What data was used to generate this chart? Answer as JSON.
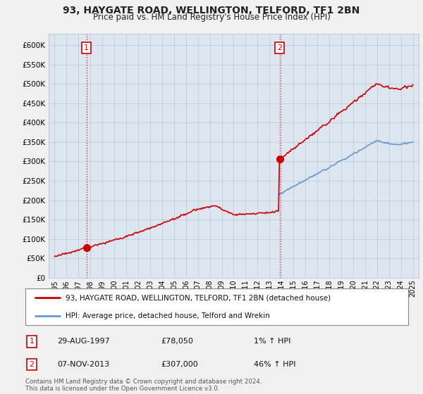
{
  "title": "93, HAYGATE ROAD, WELLINGTON, TELFORD, TF1 2BN",
  "subtitle": "Price paid vs. HM Land Registry's House Price Index (HPI)",
  "sale1_year": 1997.66,
  "sale1_price": 78050,
  "sale2_year": 2013.85,
  "sale2_price": 307000,
  "legend_line1": "93, HAYGATE ROAD, WELLINGTON, TELFORD, TF1 2BN (detached house)",
  "legend_line2": "HPI: Average price, detached house, Telford and Wrekin",
  "table_rows": [
    [
      "1",
      "29-AUG-1997",
      "£78,050",
      "1% ↑ HPI"
    ],
    [
      "2",
      "07-NOV-2013",
      "£307,000",
      "46% ↑ HPI"
    ]
  ],
  "footnote": "Contains HM Land Registry data © Crown copyright and database right 2024.\nThis data is licensed under the Open Government Licence v3.0.",
  "red_color": "#cc0000",
  "blue_color": "#6699cc",
  "bg_color": "#e8eef5",
  "plot_bg": "#dde6f0",
  "fig_bg": "#f0f0f0",
  "ylabel_ticks": [
    0,
    50000,
    100000,
    150000,
    200000,
    250000,
    300000,
    350000,
    400000,
    450000,
    500000,
    550000,
    600000
  ],
  "ylabel_labels": [
    "£0",
    "£50K",
    "£100K",
    "£150K",
    "£200K",
    "£250K",
    "£300K",
    "£350K",
    "£400K",
    "£450K",
    "£500K",
    "£550K",
    "£600K"
  ],
  "xlim": [
    1994.5,
    2025.5
  ],
  "ylim": [
    0,
    630000
  ]
}
